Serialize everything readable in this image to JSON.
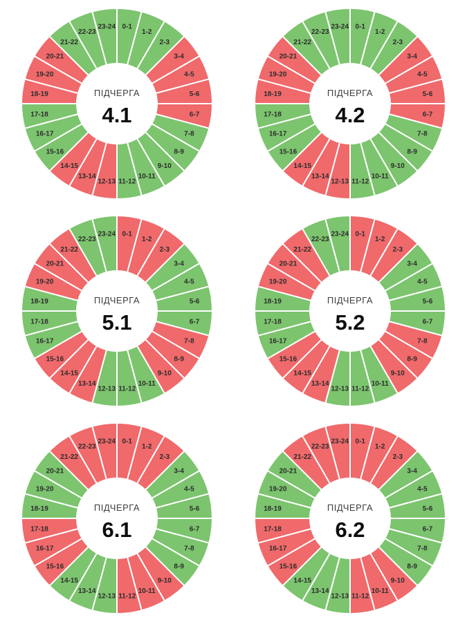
{
  "colors": {
    "green": "#7cc46e",
    "red": "#f0696b",
    "segment_gap": "#ffffff",
    "hour_label": "#2d2d2d",
    "center_label_color": "#3d3d3d",
    "center_value_color": "#0d0d0d",
    "background": "#ffffff"
  },
  "chart_data": [
    {
      "type": "pie",
      "subtype": "donut",
      "title": "ПІДЧЕРГА 4.1",
      "center_label": "ПІДЧЕРГА",
      "center_value": "4.1",
      "categories": [
        "0-1",
        "1-2",
        "2-3",
        "3-4",
        "4-5",
        "5-6",
        "6-7",
        "7-8",
        "8-9",
        "9-10",
        "10-11",
        "11-12",
        "12-13",
        "13-14",
        "14-15",
        "15-16",
        "16-17",
        "17-18",
        "18-19",
        "19-20",
        "20-21",
        "21-22",
        "22-23",
        "23-24"
      ],
      "values": [
        1,
        1,
        1,
        1,
        1,
        1,
        1,
        1,
        1,
        1,
        1,
        1,
        1,
        1,
        1,
        1,
        1,
        1,
        1,
        1,
        1,
        1,
        1,
        1
      ],
      "segment_colors": [
        "green",
        "green",
        "green",
        "red",
        "red",
        "red",
        "red",
        "green",
        "green",
        "green",
        "green",
        "green",
        "red",
        "red",
        "red",
        "green",
        "green",
        "green",
        "red",
        "red",
        "red",
        "green",
        "green",
        "green"
      ]
    },
    {
      "type": "pie",
      "subtype": "donut",
      "title": "ПІДЧЕРГА 4.2",
      "center_label": "ПІДЧЕРГА",
      "center_value": "4.2",
      "categories": [
        "0-1",
        "1-2",
        "2-3",
        "3-4",
        "4-5",
        "5-6",
        "6-7",
        "7-8",
        "8-9",
        "9-10",
        "10-11",
        "11-12",
        "12-13",
        "13-14",
        "14-15",
        "15-16",
        "16-17",
        "17-18",
        "18-19",
        "19-20",
        "20-21",
        "21-22",
        "22-23",
        "23-24"
      ],
      "values": [
        1,
        1,
        1,
        1,
        1,
        1,
        1,
        1,
        1,
        1,
        1,
        1,
        1,
        1,
        1,
        1,
        1,
        1,
        1,
        1,
        1,
        1,
        1,
        1
      ],
      "segment_colors": [
        "green",
        "green",
        "green",
        "red",
        "red",
        "red",
        "red",
        "green",
        "green",
        "green",
        "green",
        "green",
        "red",
        "red",
        "red",
        "green",
        "green",
        "green",
        "red",
        "red",
        "red",
        "green",
        "green",
        "green"
      ]
    },
    {
      "type": "pie",
      "subtype": "donut",
      "title": "ПІДЧЕРГА 5.1",
      "center_label": "ПІДЧЕРГА",
      "center_value": "5.1",
      "categories": [
        "0-1",
        "1-2",
        "2-3",
        "3-4",
        "4-5",
        "5-6",
        "6-7",
        "7-8",
        "8-9",
        "9-10",
        "10-11",
        "11-12",
        "12-13",
        "13-14",
        "14-15",
        "15-16",
        "16-17",
        "17-18",
        "18-19",
        "19-20",
        "20-21",
        "21-22",
        "22-23",
        "23-24"
      ],
      "values": [
        1,
        1,
        1,
        1,
        1,
        1,
        1,
        1,
        1,
        1,
        1,
        1,
        1,
        1,
        1,
        1,
        1,
        1,
        1,
        1,
        1,
        1,
        1,
        1
      ],
      "segment_colors": [
        "red",
        "red",
        "red",
        "green",
        "green",
        "green",
        "green",
        "red",
        "red",
        "red",
        "green",
        "green",
        "green",
        "red",
        "red",
        "red",
        "green",
        "green",
        "green",
        "red",
        "red",
        "red",
        "green",
        "green"
      ]
    },
    {
      "type": "pie",
      "subtype": "donut",
      "title": "ПІДЧЕРГА 5.2",
      "center_label": "ПІДЧЕРГА",
      "center_value": "5.2",
      "categories": [
        "0-1",
        "1-2",
        "2-3",
        "3-4",
        "4-5",
        "5-6",
        "6-7",
        "7-8",
        "8-9",
        "9-10",
        "10-11",
        "11-12",
        "12-13",
        "13-14",
        "14-15",
        "15-16",
        "16-17",
        "17-18",
        "18-19",
        "19-20",
        "20-21",
        "21-22",
        "22-23",
        "23-24"
      ],
      "values": [
        1,
        1,
        1,
        1,
        1,
        1,
        1,
        1,
        1,
        1,
        1,
        1,
        1,
        1,
        1,
        1,
        1,
        1,
        1,
        1,
        1,
        1,
        1,
        1
      ],
      "segment_colors": [
        "red",
        "red",
        "red",
        "green",
        "green",
        "green",
        "green",
        "red",
        "red",
        "red",
        "green",
        "green",
        "green",
        "red",
        "red",
        "red",
        "green",
        "green",
        "green",
        "red",
        "red",
        "red",
        "green",
        "green"
      ]
    },
    {
      "type": "pie",
      "subtype": "donut",
      "title": "ПІДЧЕРГА 6.1",
      "center_label": "ПІДЧЕРГА",
      "center_value": "6.1",
      "categories": [
        "0-1",
        "1-2",
        "2-3",
        "3-4",
        "4-5",
        "5-6",
        "6-7",
        "7-8",
        "8-9",
        "9-10",
        "10-11",
        "11-12",
        "12-13",
        "13-14",
        "14-15",
        "15-16",
        "16-17",
        "17-18",
        "18-19",
        "19-20",
        "20-21",
        "21-22",
        "22-23",
        "23-24"
      ],
      "values": [
        1,
        1,
        1,
        1,
        1,
        1,
        1,
        1,
        1,
        1,
        1,
        1,
        1,
        1,
        1,
        1,
        1,
        1,
        1,
        1,
        1,
        1,
        1,
        1
      ],
      "segment_colors": [
        "red",
        "red",
        "red",
        "green",
        "green",
        "green",
        "green",
        "green",
        "green",
        "red",
        "red",
        "red",
        "green",
        "green",
        "green",
        "red",
        "red",
        "red",
        "green",
        "green",
        "green",
        "red",
        "red",
        "red"
      ]
    },
    {
      "type": "pie",
      "subtype": "donut",
      "title": "ПІДЧЕРГА 6.2",
      "center_label": "ПІДЧЕРГА",
      "center_value": "6.2",
      "categories": [
        "0-1",
        "1-2",
        "2-3",
        "3-4",
        "4-5",
        "5-6",
        "6-7",
        "7-8",
        "8-9",
        "9-10",
        "10-11",
        "11-12",
        "12-13",
        "13-14",
        "14-15",
        "15-16",
        "16-17",
        "17-18",
        "18-19",
        "19-20",
        "20-21",
        "21-22",
        "22-23",
        "23-24"
      ],
      "values": [
        1,
        1,
        1,
        1,
        1,
        1,
        1,
        1,
        1,
        1,
        1,
        1,
        1,
        1,
        1,
        1,
        1,
        1,
        1,
        1,
        1,
        1,
        1,
        1
      ],
      "segment_colors": [
        "red",
        "red",
        "red",
        "green",
        "green",
        "green",
        "green",
        "green",
        "green",
        "red",
        "red",
        "red",
        "green",
        "green",
        "green",
        "red",
        "red",
        "red",
        "green",
        "green",
        "green",
        "red",
        "red",
        "red"
      ]
    }
  ],
  "geometry": {
    "outer_radius": 138,
    "inner_radius": 58,
    "label_radius": 113
  }
}
